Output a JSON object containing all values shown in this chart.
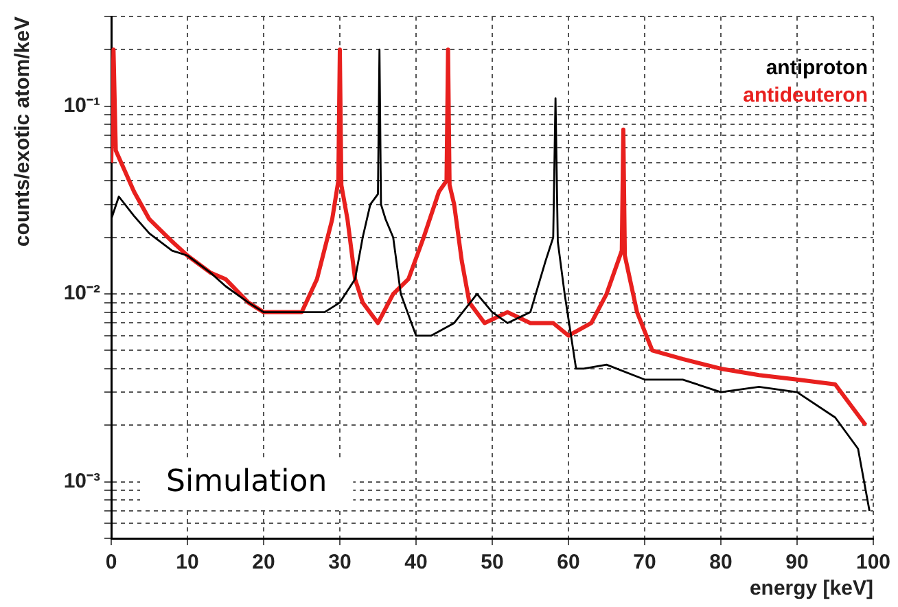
{
  "chart_data": {
    "type": "line",
    "xlabel": "energy [keV]",
    "ylabel": "counts/exotic atom/keV",
    "log": "y",
    "grid": true,
    "legend": "top right",
    "marker": "none",
    "line_style": "solid",
    "xlim": [
      0,
      100
    ],
    "xticks": [
      0,
      10,
      20,
      30,
      40,
      50,
      60,
      70,
      80,
      90,
      100
    ],
    "ylim": [
      0.0005,
      0.3
    ],
    "yticks": [
      {
        "value": 0.0005,
        "label": null
      },
      {
        "value": 0.0006,
        "label": null
      },
      {
        "value": 0.0007,
        "label": null
      },
      {
        "value": 0.0008,
        "label": null
      },
      {
        "value": 0.0009,
        "label": null
      },
      {
        "value": 0.001,
        "label": "10⁻³"
      },
      {
        "value": 0.002,
        "label": null
      },
      {
        "value": 0.003,
        "label": null
      },
      {
        "value": 0.004,
        "label": null
      },
      {
        "value": 0.005,
        "label": null
      },
      {
        "value": 0.006,
        "label": null
      },
      {
        "value": 0.007,
        "label": null
      },
      {
        "value": 0.008,
        "label": null
      },
      {
        "value": 0.009,
        "label": null
      },
      {
        "value": 0.01,
        "label": "10⁻²"
      },
      {
        "value": 0.02,
        "label": null
      },
      {
        "value": 0.03,
        "label": null
      },
      {
        "value": 0.04,
        "label": null
      },
      {
        "value": 0.05,
        "label": null
      },
      {
        "value": 0.06,
        "label": null
      },
      {
        "value": 0.07,
        "label": null
      },
      {
        "value": 0.08,
        "label": null
      },
      {
        "value": 0.09,
        "label": null
      },
      {
        "value": 0.1,
        "label": "10⁻¹"
      },
      {
        "value": 0.2,
        "label": null
      },
      {
        "value": 0.3,
        "label": null
      }
    ],
    "annotations": [
      "Simulation"
    ],
    "series": [
      {
        "name": "antiproton",
        "color": "#000000",
        "x": [
          0,
          1,
          3,
          5,
          8,
          10,
          13,
          15,
          18,
          20,
          23,
          25,
          28,
          30,
          32,
          33,
          34,
          35,
          35.2,
          35.4,
          36,
          37,
          38,
          40,
          42,
          45,
          48,
          50,
          52,
          55,
          57,
          58,
          58.3,
          58.6,
          59.5,
          61,
          62,
          65,
          70,
          75,
          80,
          85,
          90,
          95,
          98,
          99.5
        ],
        "values": [
          0.025,
          0.033,
          0.026,
          0.021,
          0.017,
          0.016,
          0.013,
          0.011,
          0.009,
          0.008,
          0.008,
          0.008,
          0.008,
          0.009,
          0.012,
          0.02,
          0.03,
          0.034,
          0.2,
          0.03,
          0.025,
          0.02,
          0.01,
          0.006,
          0.006,
          0.007,
          0.01,
          0.008,
          0.007,
          0.008,
          0.015,
          0.02,
          0.11,
          0.019,
          0.01,
          0.004,
          0.004,
          0.0042,
          0.0035,
          0.0035,
          0.003,
          0.0032,
          0.003,
          0.0022,
          0.0015,
          0.0007
        ]
      },
      {
        "name": "antideuteron",
        "color": "#e8201e",
        "x": [
          0,
          0.3,
          0.6,
          3,
          5,
          8,
          10,
          13,
          15,
          18,
          20,
          23,
          25,
          27,
          29,
          29.8,
          30,
          30.2,
          31,
          32,
          33,
          35,
          37,
          39,
          41,
          43,
          44,
          44.2,
          44.4,
          45,
          46,
          47,
          49,
          52,
          55,
          58,
          60,
          63,
          65,
          67,
          67.2,
          67.4,
          69,
          71,
          75,
          80,
          85,
          90,
          95,
          99
        ],
        "values": [
          0.05,
          0.2,
          0.058,
          0.035,
          0.025,
          0.019,
          0.016,
          0.013,
          0.012,
          0.009,
          0.008,
          0.008,
          0.008,
          0.012,
          0.025,
          0.04,
          0.2,
          0.038,
          0.025,
          0.012,
          0.009,
          0.007,
          0.01,
          0.012,
          0.02,
          0.035,
          0.04,
          0.2,
          0.038,
          0.03,
          0.015,
          0.009,
          0.007,
          0.008,
          0.007,
          0.007,
          0.006,
          0.007,
          0.01,
          0.017,
          0.075,
          0.016,
          0.008,
          0.005,
          0.0045,
          0.004,
          0.0037,
          0.0035,
          0.0033,
          0.002
        ]
      }
    ]
  }
}
